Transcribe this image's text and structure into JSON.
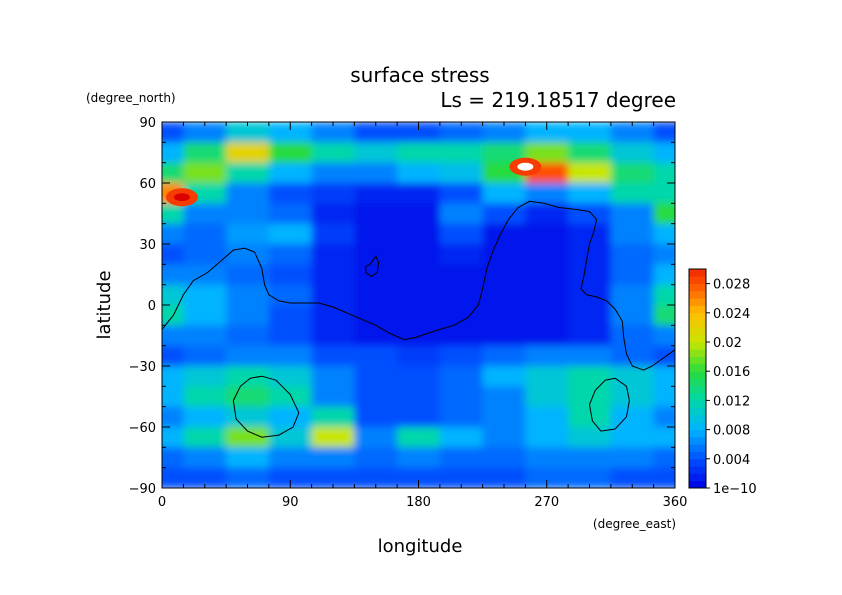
{
  "chart_data": {
    "type": "heatmap",
    "title": "surface stress",
    "subtitle": "Ls = 219.18517 degree",
    "xlabel": "longitude",
    "ylabel": "latitude",
    "x_units": "(degree_east)",
    "y_units": "(degree_north)",
    "xlim": [
      0,
      360
    ],
    "ylim": [
      -90,
      90
    ],
    "x_ticks": [
      "0",
      "90",
      "180",
      "270",
      "360"
    ],
    "y_ticks": [
      "90",
      "60",
      "30",
      "0",
      "−30",
      "−60",
      "−90"
    ],
    "colorbar": {
      "min": 0,
      "max": 0.03,
      "tick_labels": [
        "1e−10",
        "0.004",
        "0.008",
        "0.012",
        "0.016",
        "0.02",
        "0.024",
        "0.028"
      ],
      "tick_values": [
        0,
        0.004,
        0.008,
        0.012,
        0.016,
        0.02,
        0.024,
        0.028
      ]
    },
    "field": {
      "lon": [
        0,
        30,
        60,
        90,
        120,
        150,
        180,
        210,
        240,
        270,
        300,
        330,
        360
      ],
      "lat": [
        85,
        75,
        65,
        55,
        45,
        35,
        25,
        15,
        5,
        -5,
        -15,
        -25,
        -35,
        -45,
        -55,
        -65,
        -75,
        -85
      ],
      "values": [
        [
          0.004,
          0.006,
          0.01,
          0.008,
          0.006,
          0.004,
          0.004,
          0.005,
          0.006,
          0.008,
          0.008,
          0.006,
          0.004
        ],
        [
          0.008,
          0.014,
          0.022,
          0.016,
          0.012,
          0.01,
          0.012,
          0.012,
          0.014,
          0.018,
          0.014,
          0.01,
          0.008
        ],
        [
          0.014,
          0.018,
          0.012,
          0.008,
          0.006,
          0.006,
          0.008,
          0.009,
          0.016,
          0.028,
          0.02,
          0.014,
          0.012
        ],
        [
          0.026,
          0.012,
          0.006,
          0.004,
          0.003,
          0.002,
          0.002,
          0.004,
          0.008,
          0.006,
          0.008,
          0.012,
          0.012
        ],
        [
          0.012,
          0.006,
          0.006,
          0.005,
          0.002,
          0.001,
          0.001,
          0.006,
          0.004,
          0.002,
          0.004,
          0.006,
          0.016
        ],
        [
          0.006,
          0.005,
          0.007,
          0.008,
          0.003,
          0.001,
          0.001,
          0.004,
          0.001,
          0.001,
          0.002,
          0.006,
          0.008
        ],
        [
          0.004,
          0.005,
          0.006,
          0.005,
          0.002,
          0.001,
          0.001,
          0.002,
          0.001,
          0.001,
          0.002,
          0.005,
          0.006
        ],
        [
          0.006,
          0.006,
          0.005,
          0.004,
          0.002,
          0.001,
          0.001,
          0.001,
          0.001,
          0.001,
          0.002,
          0.005,
          0.008
        ],
        [
          0.01,
          0.008,
          0.006,
          0.005,
          0.002,
          0.001,
          0.001,
          0.001,
          0.001,
          0.001,
          0.002,
          0.006,
          0.012
        ],
        [
          0.012,
          0.008,
          0.006,
          0.004,
          0.002,
          0.001,
          0.001,
          0.001,
          0.001,
          0.001,
          0.002,
          0.006,
          0.014
        ],
        [
          0.006,
          0.006,
          0.005,
          0.004,
          0.002,
          0.001,
          0.001,
          0.001,
          0.001,
          0.001,
          0.002,
          0.005,
          0.006
        ],
        [
          0.004,
          0.005,
          0.006,
          0.006,
          0.004,
          0.004,
          0.003,
          0.004,
          0.005,
          0.006,
          0.006,
          0.005,
          0.004
        ],
        [
          0.008,
          0.01,
          0.012,
          0.01,
          0.006,
          0.004,
          0.004,
          0.005,
          0.008,
          0.01,
          0.012,
          0.01,
          0.008
        ],
        [
          0.008,
          0.012,
          0.014,
          0.012,
          0.006,
          0.004,
          0.004,
          0.005,
          0.006,
          0.01,
          0.012,
          0.01,
          0.008
        ],
        [
          0.006,
          0.008,
          0.01,
          0.008,
          0.012,
          0.004,
          0.004,
          0.005,
          0.006,
          0.008,
          0.012,
          0.008,
          0.006
        ],
        [
          0.008,
          0.012,
          0.018,
          0.01,
          0.02,
          0.006,
          0.012,
          0.008,
          0.006,
          0.008,
          0.01,
          0.008,
          0.008
        ],
        [
          0.005,
          0.006,
          0.008,
          0.006,
          0.006,
          0.005,
          0.006,
          0.005,
          0.005,
          0.006,
          0.006,
          0.006,
          0.005
        ],
        [
          0.004,
          0.004,
          0.005,
          0.004,
          0.004,
          0.004,
          0.004,
          0.004,
          0.004,
          0.005,
          0.005,
          0.004,
          0.004
        ]
      ]
    },
    "hot_spots": [
      {
        "lon": 255,
        "lat": 68,
        "value": 0.034
      },
      {
        "lon": 14,
        "lat": 53,
        "value": 0.032
      }
    ],
    "topo_contours": [
      {
        "name": "equatorial-boundary",
        "points": [
          [
            0,
            -12
          ],
          [
            8,
            -5
          ],
          [
            15,
            5
          ],
          [
            22,
            12
          ],
          [
            32,
            16
          ],
          [
            42,
            22
          ],
          [
            50,
            27
          ],
          [
            58,
            28
          ],
          [
            65,
            26
          ],
          [
            70,
            18
          ],
          [
            72,
            10
          ],
          [
            75,
            5
          ],
          [
            82,
            2
          ],
          [
            90,
            1
          ],
          [
            100,
            1
          ],
          [
            110,
            1
          ],
          [
            120,
            -1
          ],
          [
            130,
            -4
          ],
          [
            140,
            -7
          ],
          [
            150,
            -10
          ],
          [
            160,
            -14
          ],
          [
            170,
            -17
          ],
          [
            178,
            -16
          ],
          [
            186,
            -14
          ],
          [
            195,
            -12
          ],
          [
            205,
            -10
          ],
          [
            215,
            -6
          ],
          [
            222,
            0
          ],
          [
            225,
            8
          ],
          [
            228,
            18
          ],
          [
            232,
            26
          ],
          [
            237,
            34
          ],
          [
            243,
            42
          ],
          [
            250,
            48
          ],
          [
            258,
            51
          ],
          [
            268,
            50
          ],
          [
            278,
            48
          ],
          [
            290,
            47
          ],
          [
            300,
            46
          ],
          [
            305,
            42
          ],
          [
            303,
            36
          ],
          [
            300,
            30
          ],
          [
            298,
            22
          ],
          [
            296,
            14
          ],
          [
            294,
            8
          ],
          [
            298,
            5
          ],
          [
            305,
            4
          ],
          [
            312,
            2
          ],
          [
            318,
            -2
          ],
          [
            323,
            -8
          ],
          [
            324,
            -16
          ],
          [
            326,
            -24
          ],
          [
            330,
            -30
          ],
          [
            338,
            -32
          ],
          [
            344,
            -30
          ],
          [
            350,
            -27
          ],
          [
            356,
            -24
          ],
          [
            360,
            -22
          ]
        ]
      },
      {
        "name": "crater-west",
        "points": [
          [
            70,
            -35
          ],
          [
            80,
            -37
          ],
          [
            90,
            -44
          ],
          [
            96,
            -53
          ],
          [
            92,
            -60
          ],
          [
            82,
            -64
          ],
          [
            70,
            -65
          ],
          [
            60,
            -62
          ],
          [
            52,
            -56
          ],
          [
            50,
            -47
          ],
          [
            55,
            -40
          ],
          [
            62,
            -36
          ],
          [
            70,
            -35
          ]
        ]
      },
      {
        "name": "crater-east",
        "points": [
          [
            318,
            -36
          ],
          [
            326,
            -40
          ],
          [
            328,
            -47
          ],
          [
            326,
            -55
          ],
          [
            318,
            -61
          ],
          [
            308,
            -62
          ],
          [
            302,
            -57
          ],
          [
            300,
            -49
          ],
          [
            304,
            -42
          ],
          [
            311,
            -37
          ],
          [
            318,
            -36
          ]
        ]
      },
      {
        "name": "island",
        "points": [
          [
            146,
            20
          ],
          [
            150,
            24
          ],
          [
            152,
            21
          ],
          [
            151,
            16
          ],
          [
            147,
            14
          ],
          [
            143,
            16
          ],
          [
            143,
            19
          ],
          [
            146,
            20
          ]
        ]
      }
    ]
  }
}
